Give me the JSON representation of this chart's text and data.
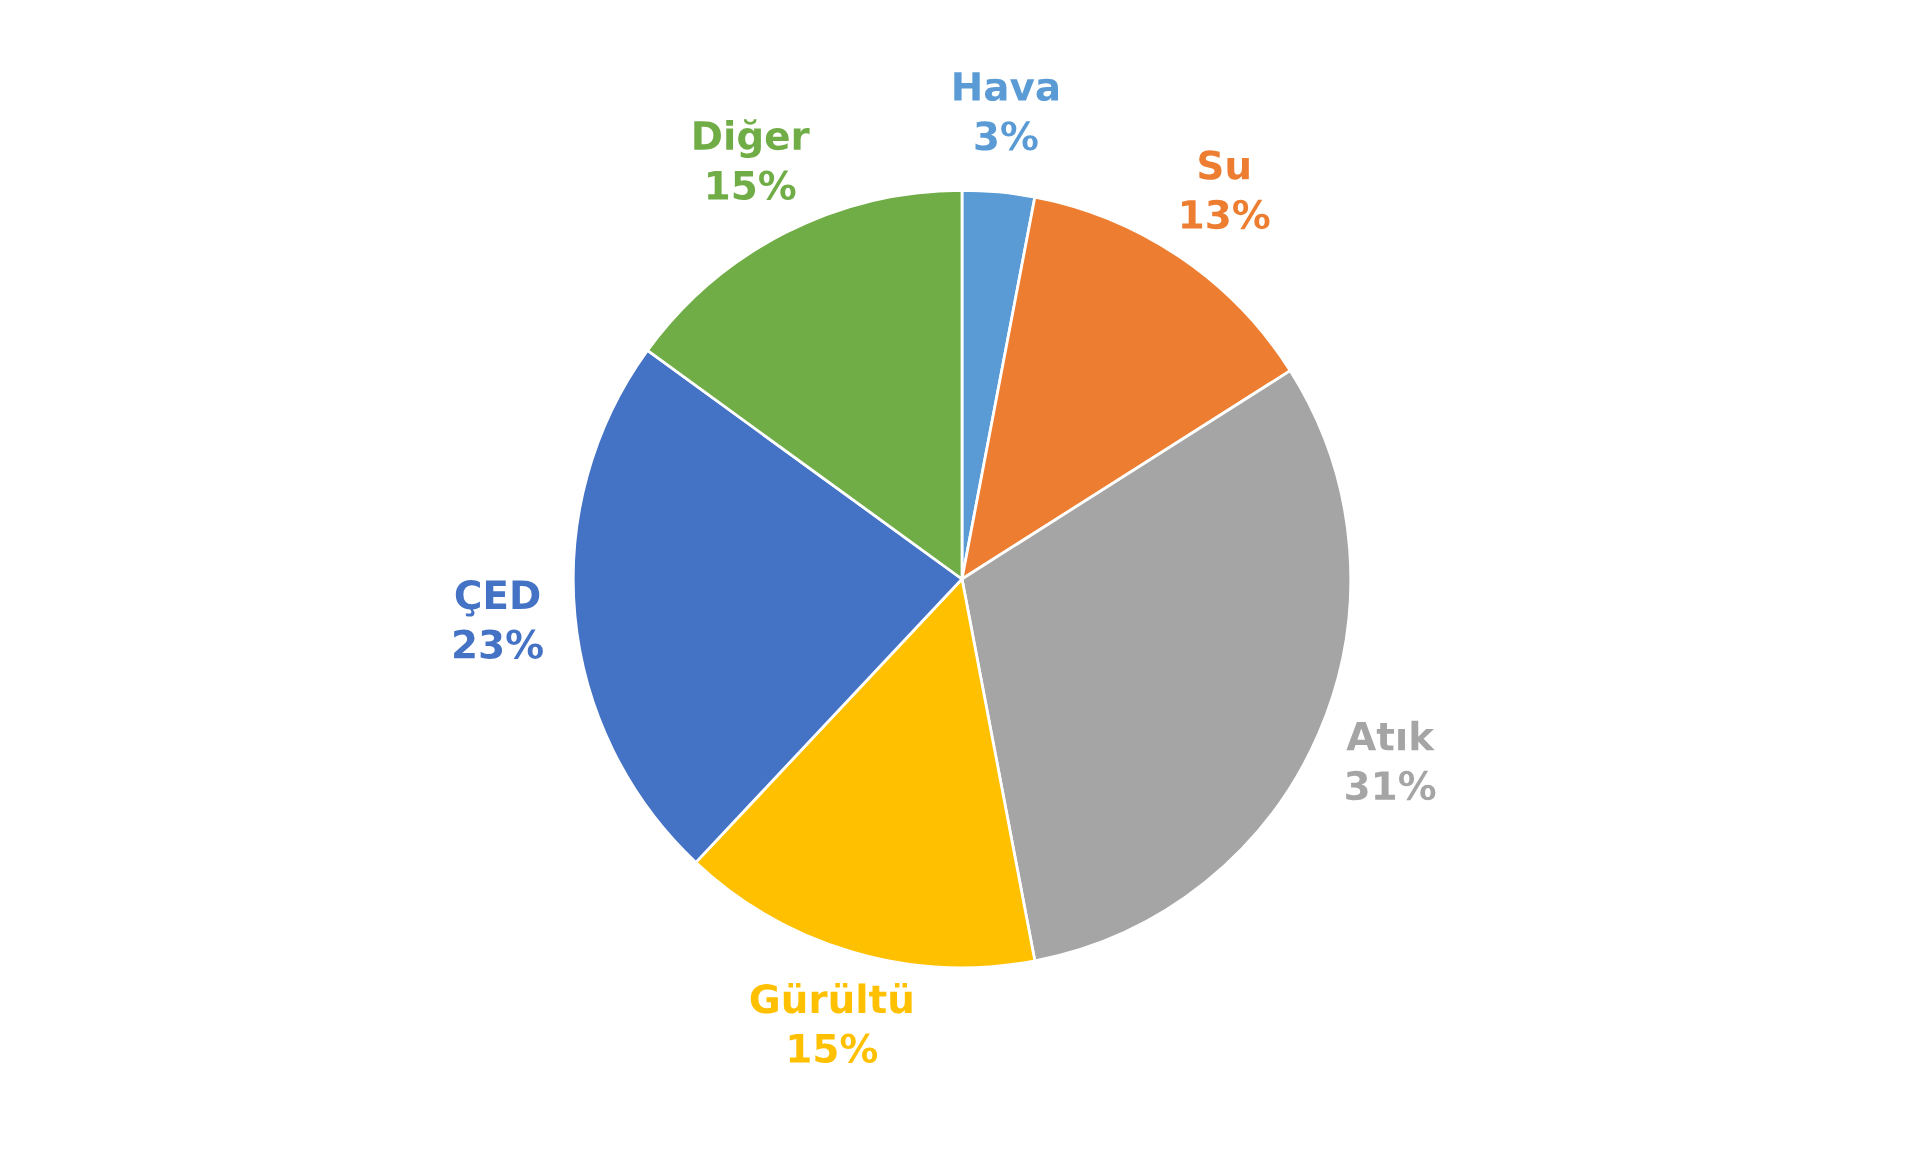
{
  "chart_data": {
    "type": "pie",
    "categories": [
      "Hava",
      "Su",
      "Atık",
      "Gürültü",
      "ÇED",
      "Diğer"
    ],
    "values": [
      3,
      13,
      31,
      15,
      23,
      15
    ],
    "colors": [
      "#5b9bd5",
      "#ed7d31",
      "#a5a5a5",
      "#ffc000",
      "#4472c4",
      "#70ad47"
    ],
    "value_labels": [
      "3%",
      "13%",
      "31%",
      "15%",
      "23%",
      "15%"
    ],
    "legend": false
  }
}
